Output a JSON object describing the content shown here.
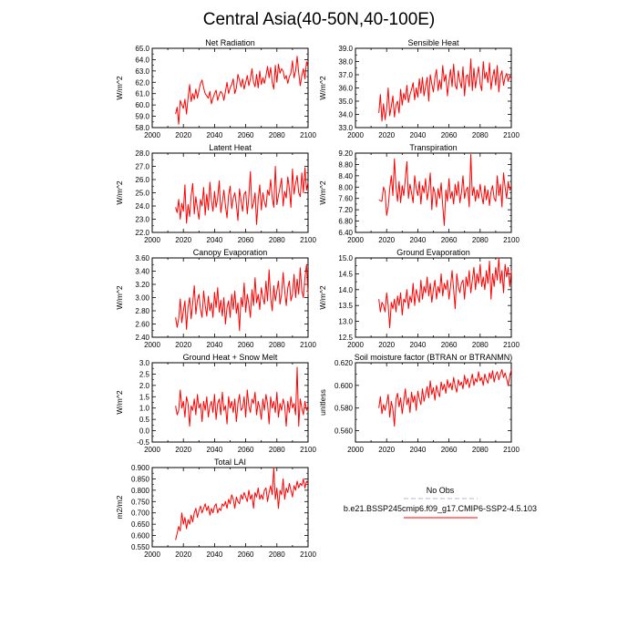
{
  "figure": {
    "title": "Central Asia(40-50N,40-100E)",
    "legend": {
      "obs_label": "No Obs",
      "model_label": "b.e21.BSSP245cmip6.f09_g17.CMIP6-SSP2-4.5.103",
      "obs_color": "#b4b4d2",
      "model_color": "#ff0000"
    }
  },
  "chart_data": [
    {
      "type": "line",
      "title": "Net Radiation",
      "ylabel": "W/m^2",
      "xlim": [
        2000,
        2100
      ],
      "ylim": [
        58.0,
        65.0
      ],
      "xticks": [
        "2000",
        "2020",
        "2040",
        "2060",
        "2080",
        "2100"
      ],
      "yticks": [
        "58.0",
        "59.0",
        "60.0",
        "61.0",
        "62.0",
        "63.0",
        "64.0",
        "65.0"
      ],
      "series": [
        {
          "start_year": 2015,
          "color": "#ff0000",
          "values": [
            59.2,
            59.8,
            58.3,
            60.4,
            60.0,
            59.7,
            60.5,
            59.2,
            60.6,
            61.8,
            60.3,
            61.0,
            60.5,
            61.4,
            60.6,
            61.3,
            61.9,
            62.2,
            61.5,
            61.0,
            60.8,
            60.6,
            61.2,
            60.1,
            60.6,
            61.0,
            61.3,
            60.4,
            60.9,
            61.2,
            61.0,
            60.4,
            61.2,
            62.0,
            61.0,
            61.5,
            61.8,
            62.3,
            61.0,
            61.5,
            62.7,
            62.2,
            61.6,
            62.3,
            61.4,
            62.0,
            62.6,
            61.7,
            62.3,
            63.2,
            62.0,
            61.6,
            62.7,
            61.5,
            63.0,
            61.8,
            62.4,
            61.9,
            62.6,
            63.4,
            62.4,
            63.3,
            62.0,
            61.4,
            63.5,
            62.0,
            63.6,
            62.8,
            63.2,
            63.0,
            62.3,
            62.6,
            61.9,
            62.5,
            62.8,
            63.9,
            62.4,
            63.0,
            64.3,
            62.8,
            61.7,
            62.6,
            63.2,
            62.3,
            63.8,
            63.5
          ]
        }
      ]
    },
    {
      "type": "line",
      "title": "Sensible Heat",
      "ylabel": "W/m^2",
      "xlim": [
        2000,
        2100
      ],
      "ylim": [
        33.0,
        39.0
      ],
      "xticks": [
        "2000",
        "2020",
        "2040",
        "2060",
        "2080",
        "2100"
      ],
      "yticks": [
        "33.0",
        "34.0",
        "35.0",
        "36.0",
        "37.0",
        "38.0",
        "39.0"
      ],
      "series": [
        {
          "start_year": 2015,
          "color": "#ff0000",
          "values": [
            34.1,
            35.5,
            33.5,
            34.8,
            33.6,
            34.4,
            36.0,
            33.9,
            34.6,
            35.4,
            33.8,
            34.7,
            35.0,
            34.1,
            35.9,
            34.7,
            35.6,
            35.1,
            36.2,
            34.9,
            35.5,
            35.9,
            36.4,
            35.1,
            36.0,
            35.3,
            36.7,
            35.6,
            36.8,
            35.4,
            36.1,
            36.8,
            35.0,
            37.0,
            36.3,
            35.7,
            36.8,
            37.4,
            35.8,
            36.6,
            35.9,
            37.7,
            36.5,
            37.0,
            35.4,
            36.5,
            37.4,
            36.1,
            37.8,
            36.2,
            35.9,
            37.3,
            36.5,
            36.0,
            37.6,
            35.4,
            36.9,
            37.0,
            36.1,
            38.2,
            35.8,
            37.5,
            36.0,
            36.9,
            37.6,
            36.3,
            35.8,
            38.0,
            36.7,
            37.2,
            36.4,
            37.9,
            35.9,
            36.8,
            37.4,
            36.2,
            37.7,
            35.7,
            36.9,
            37.3,
            36.2,
            36.8,
            37.1,
            36.5,
            36.9,
            36.7
          ]
        }
      ]
    },
    {
      "type": "line",
      "title": "Latent Heat",
      "ylabel": "W/m^2",
      "xlim": [
        2000,
        2100
      ],
      "ylim": [
        22.0,
        28.0
      ],
      "xticks": [
        "2000",
        "2020",
        "2040",
        "2060",
        "2080",
        "2100"
      ],
      "yticks": [
        "22.0",
        "23.0",
        "24.0",
        "25.0",
        "26.0",
        "27.0",
        "28.0"
      ],
      "series": [
        {
          "start_year": 2015,
          "color": "#ff0000",
          "values": [
            23.9,
            23.5,
            24.5,
            23.0,
            24.2,
            23.6,
            25.6,
            22.7,
            24.1,
            23.2,
            24.8,
            25.7,
            23.4,
            24.7,
            23.8,
            23.0,
            24.5,
            24.0,
            25.4,
            23.3,
            24.9,
            23.7,
            25.8,
            24.4,
            23.6,
            25.1,
            23.9,
            24.6,
            25.9,
            23.5,
            24.3,
            25.2,
            24.0,
            23.1,
            24.8,
            25.5,
            23.8,
            24.6,
            25.0,
            24.1,
            22.9,
            25.3,
            24.4,
            23.6,
            24.9,
            25.1,
            23.4,
            24.7,
            26.6,
            23.8,
            24.2,
            25.0,
            22.6,
            24.5,
            25.6,
            23.7,
            25.0,
            24.3,
            23.9,
            25.2,
            24.8,
            26.0,
            24.6,
            23.9,
            27.0,
            24.1,
            24.8,
            25.4,
            26.1,
            24.0,
            25.1,
            24.6,
            26.2,
            25.3,
            23.9,
            26.8,
            24.9,
            25.7,
            26.3,
            25.0,
            24.7,
            26.5,
            25.0,
            26.9,
            25.2,
            25.8
          ]
        }
      ]
    },
    {
      "type": "line",
      "title": "Transpiration",
      "ylabel": "W/m^2",
      "xlim": [
        2000,
        2100
      ],
      "ylim": [
        6.4,
        9.2
      ],
      "xticks": [
        "2000",
        "2020",
        "2040",
        "2060",
        "2080",
        "2100"
      ],
      "yticks": [
        "6.40",
        "6.80",
        "7.20",
        "7.60",
        "8.00",
        "8.40",
        "8.80",
        "9.20"
      ],
      "series": [
        {
          "start_year": 2015,
          "color": "#ff0000",
          "values": [
            7.55,
            7.52,
            7.5,
            8.0,
            7.85,
            7.0,
            7.3,
            7.95,
            8.4,
            7.7,
            9.0,
            8.0,
            7.5,
            8.2,
            7.45,
            8.05,
            7.7,
            8.3,
            8.9,
            7.6,
            8.1,
            7.8,
            7.45,
            8.4,
            7.95,
            7.7,
            8.2,
            7.4,
            8.05,
            7.8,
            8.3,
            7.55,
            7.9,
            8.5,
            7.2,
            8.0,
            7.8,
            7.3,
            7.95,
            7.6,
            8.15,
            7.35,
            6.65,
            7.9,
            7.5,
            8.3,
            7.6,
            7.85,
            7.4,
            8.1,
            7.7,
            8.2,
            7.45,
            7.8,
            8.4,
            7.6,
            7.9,
            8.0,
            7.3,
            9.15,
            7.7,
            8.0,
            7.5,
            7.9,
            7.6,
            8.1,
            7.7,
            7.4,
            8.05,
            7.55,
            7.9,
            7.35,
            7.85,
            8.05,
            7.6,
            7.5,
            8.4,
            7.7,
            8.1,
            7.3,
            8.5,
            8.0,
            7.6,
            8.2,
            7.9,
            8.0
          ]
        }
      ]
    },
    {
      "type": "line",
      "title": "Canopy Evaporation",
      "ylabel": "W/m^2",
      "xlim": [
        2000,
        2100
      ],
      "ylim": [
        2.4,
        3.6
      ],
      "xticks": [
        "2000",
        "2020",
        "2040",
        "2060",
        "2080",
        "2100"
      ],
      "yticks": [
        "2.40",
        "2.60",
        "2.80",
        "3.00",
        "3.20",
        "3.40",
        "3.60"
      ],
      "series": [
        {
          "start_year": 2015,
          "color": "#ff0000",
          "values": [
            2.7,
            2.55,
            2.68,
            2.98,
            2.62,
            2.8,
            2.95,
            2.52,
            2.86,
            3.0,
            2.68,
            2.92,
            3.18,
            2.75,
            2.96,
            3.05,
            2.82,
            2.7,
            3.1,
            2.88,
            2.72,
            3.02,
            2.8,
            2.92,
            2.7,
            3.08,
            2.85,
            3.15,
            2.78,
            2.96,
            2.72,
            3.0,
            2.6,
            2.85,
            2.95,
            2.7,
            3.05,
            2.82,
            3.1,
            2.76,
            2.92,
            2.5,
            3.0,
            2.86,
            3.22,
            2.78,
            3.05,
            2.9,
            2.7,
            3.12,
            2.88,
            3.3,
            2.92,
            3.05,
            2.82,
            3.15,
            3.0,
            2.9,
            3.25,
            2.95,
            3.42,
            3.0,
            2.8,
            3.18,
            2.95,
            3.1,
            3.25,
            2.9,
            3.05,
            3.38,
            3.1,
            2.88,
            3.15,
            3.25,
            2.95,
            3.05,
            3.35,
            3.0,
            3.28,
            3.05,
            3.45,
            3.1,
            3.0,
            3.3,
            3.5,
            3.05
          ]
        }
      ]
    },
    {
      "type": "line",
      "title": "Ground Evaporation",
      "ylabel": "W/m^2",
      "xlim": [
        2000,
        2100
      ],
      "ylim": [
        12.5,
        15.0
      ],
      "xticks": [
        "2000",
        "2020",
        "2040",
        "2060",
        "2080",
        "2100"
      ],
      "yticks": [
        "12.5",
        "13.0",
        "13.5",
        "14.0",
        "14.5",
        "15.0"
      ],
      "series": [
        {
          "start_year": 2015,
          "color": "#ff0000",
          "values": [
            13.7,
            13.3,
            13.6,
            13.5,
            13.3,
            13.9,
            13.5,
            12.8,
            13.6,
            13.4,
            13.7,
            13.3,
            13.8,
            13.5,
            13.9,
            13.2,
            13.7,
            13.6,
            14.0,
            13.4,
            13.8,
            13.6,
            14.2,
            13.5,
            14.0,
            13.8,
            13.6,
            14.3,
            13.7,
            14.1,
            13.9,
            14.4,
            13.8,
            14.2,
            13.6,
            14.0,
            14.3,
            13.7,
            14.1,
            13.9,
            14.5,
            13.8,
            14.2,
            14.0,
            14.3,
            13.7,
            14.1,
            14.6,
            14.0,
            13.4,
            14.5,
            14.1,
            13.9,
            14.2,
            14.3,
            13.7,
            14.4,
            14.1,
            14.6,
            13.9,
            14.3,
            14.7,
            14.0,
            14.5,
            14.2,
            14.8,
            14.1,
            14.4,
            14.0,
            14.6,
            14.2,
            14.9,
            13.7,
            14.5,
            14.1,
            14.7,
            14.3,
            15.0,
            14.2,
            14.6,
            13.9,
            14.8,
            14.4,
            14.7,
            14.1,
            14.6
          ]
        }
      ]
    },
    {
      "type": "line",
      "title": "Ground Heat + Snow Melt",
      "ylabel": "W/m^2",
      "xlim": [
        2000,
        2100
      ],
      "ylim": [
        -0.5,
        3.0
      ],
      "xticks": [
        "2000",
        "2020",
        "2040",
        "2060",
        "2080",
        "2100"
      ],
      "yticks": [
        "-0.5",
        "0.0",
        "0.5",
        "1.0",
        "1.5",
        "2.0",
        "2.5",
        "3.0"
      ],
      "series": [
        {
          "start_year": 2015,
          "color": "#ff0000",
          "values": [
            1.1,
            0.7,
            0.9,
            1.8,
            1.0,
            1.3,
            0.6,
            1.5,
            1.2,
            0.2,
            1.1,
            0.9,
            1.4,
            0.7,
            1.6,
            1.0,
            1.2,
            0.4,
            1.3,
            0.9,
            1.5,
            0.6,
            1.1,
            1.3,
            0.8,
            1.6,
            0.5,
            1.2,
            1.4,
            0.7,
            1.7,
            0.9,
            1.1,
            0.3,
            1.5,
            1.0,
            1.3,
            0.8,
            1.4,
            0.4,
            1.2,
            1.6,
            0.9,
            1.0,
            1.5,
            0.6,
            1.8,
            1.1,
            0.8,
            1.4,
            1.2,
            1.7,
            0.7,
            1.3,
            1.0,
            0.5,
            1.4,
            0.9,
            1.6,
            1.2,
            0.3,
            1.5,
            1.0,
            1.3,
            0.8,
            1.7,
            0.6,
            1.2,
            0.9,
            1.4,
            1.1,
            0.2,
            1.3,
            0.8,
            1.5,
            1.0,
            1.2,
            0.7,
            2.8,
            0.2,
            1.4,
            1.0,
            0.7,
            1.3,
            0.9,
            1.1
          ]
        }
      ]
    },
    {
      "type": "line",
      "title": "Soil moisture factor (BTRAN or BTRANMN)",
      "ylabel": "unitless",
      "xlim": [
        2000,
        2100
      ],
      "ylim": [
        0.55,
        0.62
      ],
      "xticks": [
        "2000",
        "2020",
        "2040",
        "2060",
        "2080",
        "2100"
      ],
      "yticks": [
        "0.560",
        "0.580",
        "0.600",
        "0.620"
      ],
      "series": [
        {
          "start_year": 2015,
          "color": "#ff0000",
          "values": [
            0.58,
            0.59,
            0.575,
            0.583,
            0.578,
            0.584,
            0.592,
            0.572,
            0.586,
            0.579,
            0.564,
            0.588,
            0.593,
            0.581,
            0.589,
            0.575,
            0.586,
            0.597,
            0.583,
            0.589,
            0.576,
            0.594,
            0.585,
            0.591,
            0.578,
            0.595,
            0.588,
            0.583,
            0.597,
            0.586,
            0.592,
            0.599,
            0.589,
            0.604,
            0.592,
            0.598,
            0.587,
            0.6,
            0.594,
            0.59,
            0.603,
            0.596,
            0.601,
            0.593,
            0.605,
            0.598,
            0.602,
            0.596,
            0.607,
            0.599,
            0.594,
            0.605,
            0.6,
            0.603,
            0.597,
            0.609,
            0.601,
            0.606,
            0.598,
            0.604,
            0.61,
            0.6,
            0.606,
            0.603,
            0.612,
            0.604,
            0.607,
            0.6,
            0.61,
            0.605,
            0.602,
            0.611,
            0.606,
            0.613,
            0.603,
            0.609,
            0.612,
            0.605,
            0.61,
            0.614,
            0.607,
            0.611,
            0.606,
            0.6,
            0.608,
            0.614
          ]
        }
      ]
    },
    {
      "type": "line",
      "title": "Total LAI",
      "ylabel": "m2/m2",
      "xlim": [
        2000,
        2100
      ],
      "ylim": [
        0.55,
        0.9
      ],
      "xticks": [
        "2000",
        "2020",
        "2040",
        "2060",
        "2080",
        "2100"
      ],
      "yticks": [
        "0.550",
        "0.600",
        "0.650",
        "0.700",
        "0.750",
        "0.800",
        "0.850",
        "0.900"
      ],
      "series": [
        {
          "start_year": 2015,
          "color": "#ff0000",
          "values": [
            0.58,
            0.61,
            0.64,
            0.62,
            0.7,
            0.65,
            0.68,
            0.63,
            0.67,
            0.65,
            0.69,
            0.66,
            0.7,
            0.72,
            0.68,
            0.71,
            0.73,
            0.7,
            0.72,
            0.74,
            0.71,
            0.73,
            0.69,
            0.72,
            0.7,
            0.73,
            0.74,
            0.7,
            0.72,
            0.71,
            0.74,
            0.73,
            0.75,
            0.72,
            0.76,
            0.74,
            0.78,
            0.76,
            0.72,
            0.77,
            0.75,
            0.74,
            0.78,
            0.76,
            0.79,
            0.77,
            0.75,
            0.8,
            0.76,
            0.78,
            0.72,
            0.79,
            0.77,
            0.81,
            0.76,
            0.78,
            0.76,
            0.8,
            0.81,
            0.75,
            0.79,
            0.82,
            0.78,
            0.9,
            0.76,
            0.81,
            0.72,
            0.8,
            0.78,
            0.85,
            0.76,
            0.81,
            0.79,
            0.83,
            0.8,
            0.77,
            0.82,
            0.8,
            0.84,
            0.81,
            0.83,
            0.82,
            0.85,
            0.81,
            0.84,
            0.83
          ]
        }
      ]
    }
  ]
}
